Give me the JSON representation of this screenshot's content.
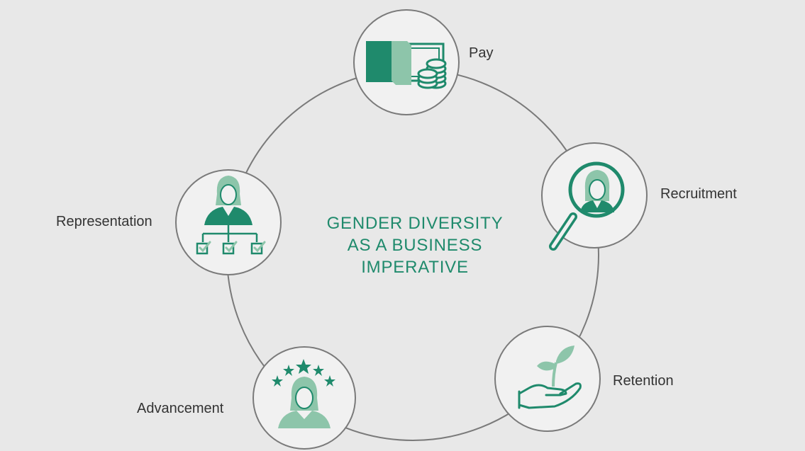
{
  "title_lines": [
    "GENDER DIVERSITY",
    "AS A BUSINESS",
    "IMPERATIVE"
  ],
  "nodes": {
    "pay": {
      "label": "Pay",
      "icon": "money-coins-icon"
    },
    "recruitment": {
      "label": "Recruitment",
      "icon": "magnifier-person-icon"
    },
    "representation": {
      "label": "Representation",
      "icon": "org-chart-icon"
    },
    "retention": {
      "label": "Retention",
      "icon": "hand-seedling-icon"
    },
    "advancement": {
      "label": "Advancement",
      "icon": "person-stars-icon"
    }
  },
  "colors": {
    "background": "#e8e8e8",
    "dark_green": "#1f8a6c",
    "light_green": "#8dc5aa",
    "ring": "#7a7a7a",
    "node_fill": "#f1f1f1"
  }
}
